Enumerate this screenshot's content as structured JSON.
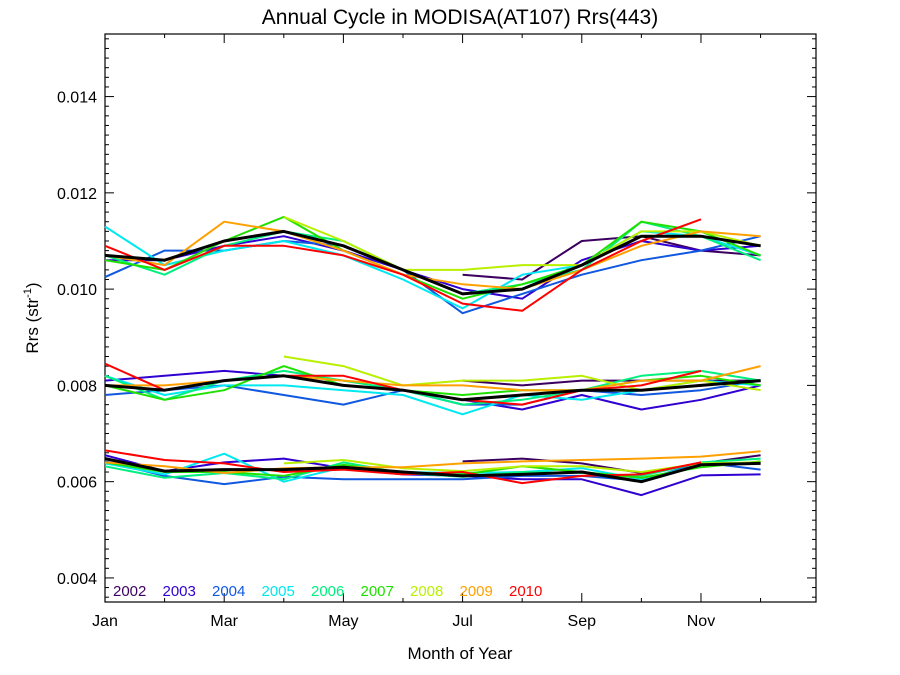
{
  "chart_data": {
    "type": "line",
    "title": "Annual Cycle in MODISA(AT107) Rrs(443)",
    "xlabel": "Month of Year",
    "ylabel": "Rrs (str",
    "ylabel_sup": "-1",
    "ylabel_close": ")",
    "xlim": [
      1,
      12.93
    ],
    "ylim": [
      0.0035,
      0.0153
    ],
    "x_ticks": [
      {
        "value": 1,
        "label": "Jan"
      },
      {
        "value": 3,
        "label": "Mar"
      },
      {
        "value": 5,
        "label": "May"
      },
      {
        "value": 7,
        "label": "Jul"
      },
      {
        "value": 9,
        "label": "Sep"
      },
      {
        "value": 11,
        "label": "Nov"
      }
    ],
    "y_ticks": [
      {
        "value": 0.004,
        "label": "0.004"
      },
      {
        "value": 0.006,
        "label": "0.006"
      },
      {
        "value": 0.008,
        "label": "0.008"
      },
      {
        "value": 0.01,
        "label": "0.010"
      },
      {
        "value": 0.012,
        "label": "0.012"
      },
      {
        "value": 0.014,
        "label": "0.014"
      }
    ],
    "x": [
      1,
      2,
      3,
      4,
      5,
      6,
      7,
      8,
      9,
      10,
      11,
      12
    ],
    "series": [
      {
        "name": "2002",
        "color": "#3c0060",
        "groups": [
          [
            null,
            null,
            null,
            null,
            null,
            null,
            0.0103,
            0.0102,
            0.011,
            0.0111,
            0.0108,
            0.0107
          ],
          [
            null,
            null,
            null,
            null,
            null,
            null,
            0.0081,
            0.008,
            0.0081,
            0.0081,
            0.0081,
            0.0081
          ],
          [
            null,
            null,
            null,
            null,
            null,
            null,
            0.00642,
            0.00648,
            0.00638,
            0.00618,
            0.00638,
            0.00655
          ]
        ]
      },
      {
        "name": "2003",
        "color": "#3000d0",
        "groups": [
          [
            0.0106,
            0.0106,
            0.0109,
            0.0111,
            0.0108,
            0.0104,
            0.01,
            0.0098,
            0.0106,
            0.011,
            0.0108,
            0.0109
          ],
          [
            0.0081,
            0.0082,
            0.0083,
            0.0082,
            0.008,
            0.0079,
            0.0077,
            0.0075,
            0.0078,
            0.0075,
            0.0077,
            0.008
          ],
          [
            0.00655,
            0.00622,
            0.0064,
            0.00648,
            0.00628,
            0.00615,
            0.00612,
            0.00605,
            0.00605,
            0.00572,
            0.00613,
            0.00615
          ]
        ]
      },
      {
        "name": "2004",
        "color": "#1058e0",
        "groups": [
          [
            0.01025,
            0.0108,
            0.0108,
            0.011,
            0.0109,
            0.0104,
            0.0095,
            0.0099,
            0.0103,
            0.0106,
            0.0108,
            0.0111
          ],
          [
            0.0078,
            0.0079,
            0.008,
            0.0078,
            0.0076,
            0.0079,
            0.0076,
            0.0076,
            0.0079,
            0.0078,
            0.0079,
            0.0081
          ],
          [
            0.00642,
            0.00612,
            0.00595,
            0.0061,
            0.00605,
            0.00605,
            0.00605,
            0.00612,
            0.00612,
            0.00602,
            0.0064,
            0.00625
          ]
        ]
      },
      {
        "name": "2005",
        "color": "#00e8f0",
        "groups": [
          [
            0.0113,
            0.0105,
            0.0108,
            0.011,
            0.0107,
            0.0102,
            0.0096,
            0.0103,
            0.0105,
            0.0112,
            0.0111,
            0.0107
          ],
          [
            0.0082,
            0.0078,
            0.008,
            0.008,
            0.0079,
            0.0078,
            0.0074,
            0.0078,
            0.0077,
            0.0079,
            0.0081,
            0.008
          ],
          [
            0.00638,
            0.00615,
            0.00658,
            0.006,
            0.0063,
            0.0062,
            0.00618,
            0.0062,
            0.00628,
            0.00605,
            0.00635,
            0.0064
          ]
        ]
      },
      {
        "name": "2006",
        "color": "#00f080",
        "groups": [
          [
            0.0107,
            0.0103,
            0.0109,
            0.0112,
            0.011,
            0.0104,
            0.0099,
            0.0101,
            0.0104,
            0.0114,
            0.0111,
            0.0106
          ],
          [
            0.0082,
            0.0077,
            0.0081,
            0.0083,
            0.0081,
            0.0079,
            0.0076,
            0.0077,
            0.0079,
            0.0082,
            0.0083,
            0.0081
          ],
          [
            0.00632,
            0.00608,
            0.00618,
            0.00605,
            0.0064,
            0.00618,
            0.0061,
            0.0062,
            0.00618,
            0.00612,
            0.0064,
            0.00648
          ]
        ]
      },
      {
        "name": "2007",
        "color": "#20e000",
        "groups": [
          [
            0.0106,
            0.0104,
            0.011,
            0.0115,
            0.0108,
            0.0103,
            0.0098,
            0.0101,
            0.0105,
            0.0114,
            0.0112,
            0.0107
          ],
          [
            0.008,
            0.0077,
            0.0079,
            0.0084,
            0.008,
            0.0079,
            0.0078,
            0.0079,
            0.0079,
            0.0081,
            0.0082,
            0.008
          ],
          [
            0.0064,
            0.0062,
            0.0062,
            0.00612,
            0.00635,
            0.00618,
            0.00615,
            0.00632,
            0.0062,
            0.00608,
            0.0063,
            0.00642
          ]
        ]
      },
      {
        "name": "2008",
        "color": "#b8f000",
        "groups": [
          [
            null,
            null,
            null,
            0.0115,
            0.011,
            0.0104,
            0.0104,
            0.0105,
            0.0105,
            0.0112,
            0.0112,
            0.0109
          ],
          [
            null,
            null,
            null,
            0.0086,
            0.0084,
            0.008,
            0.0081,
            0.0081,
            0.0082,
            0.0079,
            0.0081,
            0.0079
          ],
          [
            null,
            null,
            null,
            0.00638,
            0.00645,
            0.00628,
            0.00622,
            0.00632,
            0.00632,
            0.0062,
            0.00638,
            0.0064
          ]
        ]
      },
      {
        "name": "2009",
        "color": "#ffa000",
        "groups": [
          [
            0.0107,
            0.0105,
            0.0114,
            0.0112,
            0.0108,
            0.0103,
            0.0101,
            0.01,
            0.0104,
            0.0109,
            0.0112,
            0.0111
          ],
          [
            0.008,
            0.008,
            0.0081,
            0.0082,
            0.0081,
            0.008,
            0.008,
            0.0079,
            0.0079,
            0.0081,
            0.0081,
            0.0084
          ],
          [
            0.0064,
            0.00632,
            0.00618,
            0.00628,
            0.0063,
            0.0063,
            0.00638,
            0.00642,
            0.00645,
            0.00648,
            0.00652,
            0.00663
          ]
        ]
      },
      {
        "name": "2010",
        "color": "#ff0000",
        "groups": [
          [
            0.0109,
            0.0104,
            0.0109,
            0.0109,
            0.0107,
            0.0103,
            0.0097,
            0.00955,
            0.0104,
            0.011,
            0.01145,
            null
          ],
          [
            0.00845,
            0.0079,
            0.0081,
            0.0082,
            0.0082,
            0.0079,
            0.0077,
            0.0076,
            0.0079,
            0.008,
            0.0083,
            null
          ],
          [
            0.00665,
            0.00645,
            0.00638,
            0.0062,
            0.00625,
            0.00615,
            0.0062,
            0.00597,
            0.00612,
            0.00615,
            0.0064,
            null
          ]
        ]
      },
      {
        "name": "",
        "color": "#000000",
        "mean": true,
        "groups": [
          [
            0.0107,
            0.0106,
            0.011,
            0.0112,
            0.0109,
            0.0104,
            0.0099,
            0.01,
            0.0105,
            0.0111,
            0.0111,
            0.0109
          ],
          [
            0.008,
            0.0079,
            0.0081,
            0.0082,
            0.008,
            0.0079,
            0.0077,
            0.0078,
            0.0079,
            0.0079,
            0.008,
            0.0081
          ],
          [
            0.00648,
            0.00622,
            0.00625,
            0.00625,
            0.0063,
            0.0062,
            0.00612,
            0.00615,
            0.0062,
            0.006,
            0.00635,
            0.00638
          ]
        ]
      }
    ]
  }
}
